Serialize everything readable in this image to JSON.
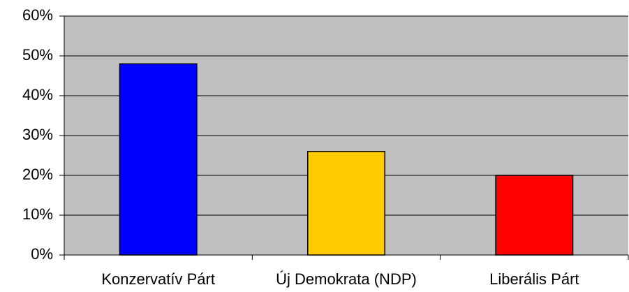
{
  "chart_data": {
    "type": "bar",
    "categories": [
      "Konzervatív Párt",
      "Új Demokrata (NDP)",
      "Liberális Párt"
    ],
    "values": [
      48,
      26,
      20
    ],
    "colors": [
      "#0000ff",
      "#ffcc00",
      "#ff0000"
    ],
    "ylim": [
      0,
      60
    ],
    "yticks": [
      {
        "value": 0,
        "label": "0%"
      },
      {
        "value": 10,
        "label": "10%"
      },
      {
        "value": 20,
        "label": "20%"
      },
      {
        "value": 30,
        "label": "30%"
      },
      {
        "value": 40,
        "label": "40%"
      },
      {
        "value": 50,
        "label": "50%"
      },
      {
        "value": 60,
        "label": "60%"
      }
    ],
    "grid": true
  }
}
